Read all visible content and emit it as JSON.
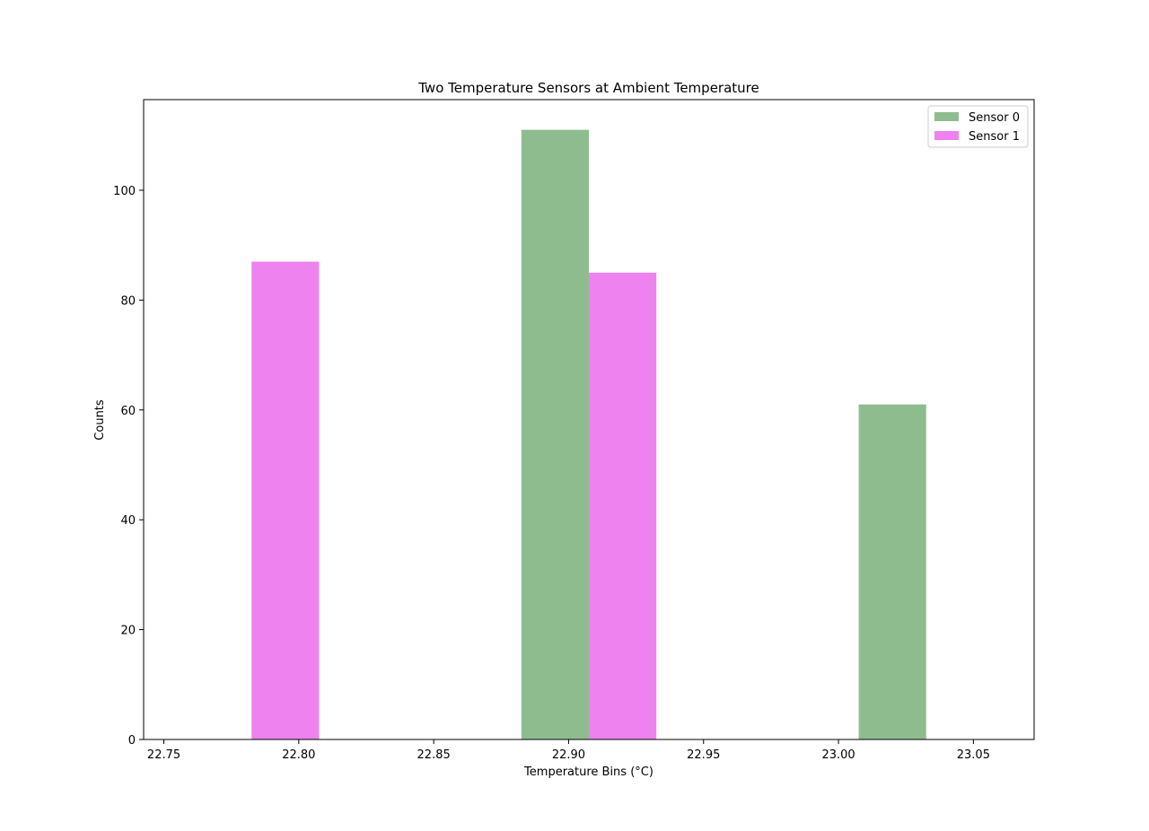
{
  "chart_data": {
    "type": "bar",
    "title": "Two Temperature Sensors at Ambient Temperature",
    "xlabel": "Temperature Bins (°C)",
    "ylabel": "Counts",
    "xlim": [
      22.7425,
      23.0725
    ],
    "ylim": [
      0,
      116.5
    ],
    "xticks": [
      22.75,
      22.8,
      22.85,
      22.9,
      22.95,
      23.0,
      23.05
    ],
    "xtick_labels": [
      "22.75",
      "22.80",
      "22.85",
      "22.90",
      "22.95",
      "23.00",
      "23.05"
    ],
    "yticks": [
      0,
      20,
      40,
      60,
      80,
      100
    ],
    "ytick_labels": [
      "0",
      "20",
      "40",
      "60",
      "80",
      "100"
    ],
    "grid": false,
    "legend_position": "top-right",
    "series": [
      {
        "name": "Sensor 0",
        "color": "#8fbc8f",
        "bars": [
          {
            "x_start": 22.8825,
            "x_end": 22.9075,
            "value": 111
          },
          {
            "x_start": 23.0075,
            "x_end": 23.0325,
            "value": 61
          }
        ]
      },
      {
        "name": "Sensor 1",
        "color": "#ee82ee",
        "bars": [
          {
            "x_start": 22.7825,
            "x_end": 22.8075,
            "value": 87
          },
          {
            "x_start": 22.9075,
            "x_end": 22.9325,
            "value": 85
          }
        ]
      }
    ]
  }
}
